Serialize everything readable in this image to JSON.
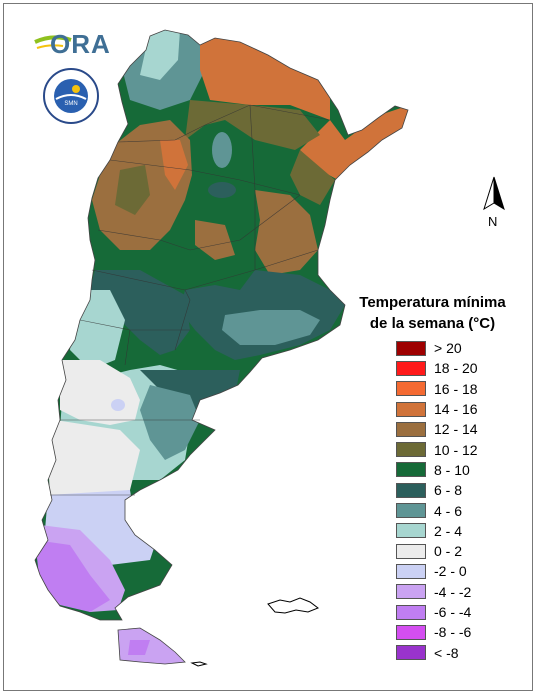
{
  "header": {
    "logo_text": "ORA",
    "seal_text": "SERVICIO METEOROLÓGICO NACIONAL",
    "seal_text_bottom": "ARGENTINA",
    "seal_center": "SMN"
  },
  "north_arrow": {
    "label": "N"
  },
  "legend": {
    "title_line1": "Temperatura mínima",
    "title_line2": "de la semana (°C)",
    "items": [
      {
        "label": "> 20",
        "color": "#9e0000"
      },
      {
        "label": "18 - 20",
        "color": "#ff1a1a"
      },
      {
        "label": "16 - 18",
        "color": "#f46a32"
      },
      {
        "label": "14 - 16",
        "color": "#d0733a"
      },
      {
        "label": "12 - 14",
        "color": "#9b6f3f"
      },
      {
        "label": "10 - 12",
        "color": "#6c6a36"
      },
      {
        "label": "8 - 10",
        "color": "#166a38"
      },
      {
        "label": "6 - 8",
        "color": "#2c5f5c"
      },
      {
        "label": "4 - 6",
        "color": "#5f9595"
      },
      {
        "label": "2 - 4",
        "color": "#a7d6d0"
      },
      {
        "label": "0 - 2",
        "color": "#ececec"
      },
      {
        "label": "-2 - 0",
        "color": "#cbd1f4"
      },
      {
        "label": "-4 - -2",
        "color": "#caa3f2"
      },
      {
        "label": "-6 - -4",
        "color": "#c07ef2"
      },
      {
        "label": "-8 - -6",
        "color": "#d44ef1"
      },
      {
        "label": "< -8",
        "color": "#9933cc"
      }
    ]
  }
}
